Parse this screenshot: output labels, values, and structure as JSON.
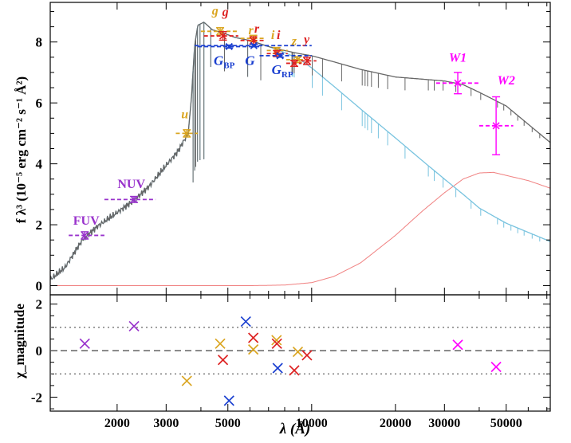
{
  "chart_data": {
    "type": "scatter",
    "x_scale": "log",
    "xlim": [
      1150,
      72000
    ],
    "xlabel": "λ (Å)",
    "xtick_labels": [
      "2000",
      "3000",
      "5000",
      "10000",
      "20000",
      "30000",
      "50000"
    ],
    "xtick_values": [
      2000,
      3000,
      5000,
      10000,
      20000,
      30000,
      50000
    ],
    "top_panel": {
      "ylabel": "f λ³ (10⁻⁵ erg cm⁻² s⁻¹ Å²)",
      "ylim": [
        -0.3,
        9.3
      ],
      "ytick_labels": [
        "0",
        "2",
        "4",
        "6",
        "8"
      ],
      "ytick_values": [
        0,
        2,
        4,
        6,
        8
      ],
      "colors": {
        "total_model": "#666666",
        "star_model": "#78c3df",
        "dust_blackbody": "#f08080",
        "galex": "#9933cc",
        "sdss": "#daa520",
        "panstarrs": "#dd2222",
        "gaia": "#1a3fd0",
        "wise": "#ff00ff"
      },
      "band_labels": [
        {
          "text": "FUV",
          "color": "#9933cc",
          "x": 1550,
          "y": 2.0
        },
        {
          "text": "NUV",
          "color": "#9933cc",
          "x": 2250,
          "y": 3.2
        },
        {
          "text": "u",
          "color": "#daa520",
          "x": 3500,
          "y": 5.5
        },
        {
          "text": "g",
          "color": "#daa520",
          "x": 4500,
          "y": 8.9
        },
        {
          "text": "g",
          "color": "#dd2222",
          "x": 4900,
          "y": 8.85
        },
        {
          "text": "r",
          "color": "#daa520",
          "x": 6050,
          "y": 8.25
        },
        {
          "text": "r",
          "color": "#dd2222",
          "x": 6350,
          "y": 8.3
        },
        {
          "text": "i",
          "color": "#daa520",
          "x": 7250,
          "y": 8.1
        },
        {
          "text": "i",
          "color": "#dd2222",
          "x": 7600,
          "y": 8.1
        },
        {
          "text": "z",
          "color": "#daa520",
          "x": 8650,
          "y": 7.9
        },
        {
          "text": "y",
          "color": "#dd2222",
          "x": 9600,
          "y": 7.95
        },
        {
          "text": "W1",
          "color": "#ff00ff",
          "x": 33500,
          "y": 7.35
        },
        {
          "text": "W2",
          "color": "#ff00ff",
          "x": 50000,
          "y": 6.6
        }
      ],
      "gaia_labels": [
        {
          "text": "G",
          "sub": "BP",
          "color": "#1a3fd0",
          "x": 4850,
          "y": 7.25
        },
        {
          "text": "G",
          "sub": "",
          "color": "#1a3fd0",
          "x": 6000,
          "y": 7.25
        },
        {
          "text": "G",
          "sub": "RP",
          "color": "#1a3fd0",
          "x": 7850,
          "y": 6.95
        }
      ],
      "points": [
        {
          "band": "FUV",
          "survey": "galex",
          "x": 1530,
          "y": 1.65,
          "xerr": [
            1340,
            1800
          ],
          "yerr": 0.12
        },
        {
          "band": "NUV",
          "survey": "galex",
          "x": 2300,
          "y": 2.83,
          "xerr": [
            1800,
            2750
          ],
          "yerr": 0.1
        },
        {
          "band": "u",
          "survey": "sdss",
          "x": 3560,
          "y": 5.0,
          "xerr": [
            3250,
            3900
          ],
          "yerr": 0.12
        },
        {
          "band": "g",
          "survey": "sdss",
          "x": 4690,
          "y": 8.35,
          "xerr": [
            4000,
            5400
          ],
          "yerr": 0.12
        },
        {
          "band": "g",
          "survey": "panstarrs",
          "x": 4800,
          "y": 8.2,
          "xerr": [
            4100,
            5450
          ],
          "yerr": 0.14
        },
        {
          "band": "r",
          "survey": "sdss",
          "x": 6170,
          "y": 8.12,
          "xerr": [
            5550,
            6850
          ],
          "yerr": 0.1
        },
        {
          "band": "r",
          "survey": "panstarrs",
          "x": 6170,
          "y": 8.05,
          "xerr": [
            5550,
            6850
          ],
          "yerr": 0.12
        },
        {
          "band": "i",
          "survey": "sdss",
          "x": 7480,
          "y": 7.72,
          "xerr": [
            6900,
            8200
          ],
          "yerr": 0.1
        },
        {
          "band": "i",
          "survey": "panstarrs",
          "x": 7500,
          "y": 7.62,
          "xerr": [
            6900,
            8200
          ],
          "yerr": 0.1
        },
        {
          "band": "z",
          "survey": "sdss",
          "x": 8920,
          "y": 7.42,
          "xerr": [
            8100,
            9800
          ],
          "yerr": 0.1
        },
        {
          "band": "z",
          "survey": "panstarrs",
          "x": 8660,
          "y": 7.3,
          "xerr": [
            8100,
            9200
          ],
          "yerr": 0.1
        },
        {
          "band": "y",
          "survey": "panstarrs",
          "x": 9620,
          "y": 7.38,
          "xerr": [
            9150,
            10400
          ],
          "yerr": 0.12
        },
        {
          "band": "G_BP",
          "survey": "gaia",
          "x": 5050,
          "y": 7.85,
          "xerr": [
            3900,
            6600
          ],
          "yerr": 0.05
        },
        {
          "band": "G",
          "survey": "gaia",
          "x": 6200,
          "y": 7.88,
          "xerr": [
            3800,
            10000
          ],
          "yerr": 0.04
        },
        {
          "band": "G_RP",
          "survey": "gaia",
          "x": 7700,
          "y": 7.55,
          "xerr": [
            6500,
            10000
          ],
          "yerr": 0.05
        },
        {
          "band": "W1",
          "survey": "wise",
          "x": 33500,
          "y": 6.65,
          "xerr": [
            28000,
            40000
          ],
          "yerr": 0.35
        },
        {
          "band": "W2",
          "survey": "wise",
          "x": 46000,
          "y": 5.25,
          "xerr": [
            40000,
            53000
          ],
          "yerr": 0.95
        }
      ]
    },
    "bottom_panel": {
      "ylabel": "χ_magnitude",
      "ylim": [
        -2.6,
        2.4
      ],
      "ytick_labels": [
        "2",
        "0",
        "-2"
      ],
      "ytick_values": [
        2,
        0,
        -2
      ],
      "ref_dashed": 0,
      "ref_dotted": [
        1,
        -1
      ],
      "points": [
        {
          "x": 1530,
          "y": 0.3,
          "color": "#9933cc"
        },
        {
          "x": 2300,
          "y": 1.05,
          "color": "#9933cc"
        },
        {
          "x": 3560,
          "y": -1.3,
          "color": "#daa520"
        },
        {
          "x": 4690,
          "y": 0.3,
          "color": "#daa520"
        },
        {
          "x": 4800,
          "y": -0.4,
          "color": "#dd2222"
        },
        {
          "x": 5050,
          "y": -2.15,
          "color": "#1a3fd0"
        },
        {
          "x": 5800,
          "y": 1.25,
          "color": "#1a3fd0"
        },
        {
          "x": 6170,
          "y": 0.55,
          "color": "#dd2222"
        },
        {
          "x": 6170,
          "y": 0.05,
          "color": "#daa520"
        },
        {
          "x": 7480,
          "y": 0.45,
          "color": "#daa520"
        },
        {
          "x": 7500,
          "y": 0.3,
          "color": "#dd2222"
        },
        {
          "x": 7550,
          "y": -0.75,
          "color": "#1a3fd0"
        },
        {
          "x": 8660,
          "y": -0.85,
          "color": "#dd2222"
        },
        {
          "x": 8920,
          "y": -0.05,
          "color": "#daa520"
        },
        {
          "x": 9620,
          "y": -0.2,
          "color": "#dd2222"
        },
        {
          "x": 33500,
          "y": 0.25,
          "color": "#ff00ff"
        },
        {
          "x": 46000,
          "y": -0.7,
          "color": "#ff00ff"
        }
      ]
    },
    "models": {
      "total_key": [
        [
          1150,
          0.2
        ],
        [
          1300,
          0.6
        ],
        [
          1500,
          1.5
        ],
        [
          1700,
          1.95
        ],
        [
          2000,
          2.4
        ],
        [
          2300,
          2.8
        ],
        [
          2600,
          3.25
        ],
        [
          3000,
          3.95
        ],
        [
          3300,
          4.4
        ],
        [
          3600,
          5.0
        ],
        [
          3700,
          6.2
        ],
        [
          3800,
          7.9
        ],
        [
          3900,
          8.55
        ],
        [
          4100,
          8.65
        ],
        [
          4400,
          8.4
        ],
        [
          4800,
          8.3
        ],
        [
          5300,
          8.15
        ],
        [
          6000,
          8.05
        ],
        [
          7000,
          7.85
        ],
        [
          8000,
          7.72
        ],
        [
          9000,
          7.62
        ],
        [
          10000,
          7.55
        ],
        [
          12000,
          7.35
        ],
        [
          15000,
          7.1
        ],
        [
          20000,
          6.85
        ],
        [
          25000,
          6.78
        ],
        [
          30000,
          6.72
        ],
        [
          35000,
          6.6
        ],
        [
          40000,
          6.35
        ],
        [
          50000,
          5.9
        ],
        [
          60000,
          5.3
        ],
        [
          72000,
          4.7
        ]
      ],
      "star_key": [
        [
          1150,
          0.2
        ],
        [
          1300,
          0.6
        ],
        [
          1500,
          1.5
        ],
        [
          1700,
          1.95
        ],
        [
          2000,
          2.4
        ],
        [
          2300,
          2.8
        ],
        [
          2600,
          3.25
        ],
        [
          3000,
          3.95
        ],
        [
          3300,
          4.4
        ],
        [
          3600,
          5.0
        ],
        [
          3700,
          6.2
        ],
        [
          3800,
          7.9
        ],
        [
          3900,
          8.55
        ],
        [
          4100,
          8.65
        ],
        [
          4400,
          8.4
        ],
        [
          4800,
          8.3
        ],
        [
          5300,
          8.15
        ],
        [
          6000,
          8.05
        ],
        [
          7000,
          7.85
        ],
        [
          8000,
          7.65
        ],
        [
          9000,
          7.45
        ],
        [
          10000,
          7.15
        ],
        [
          12000,
          6.55
        ],
        [
          15000,
          5.8
        ],
        [
          20000,
          4.85
        ],
        [
          25000,
          4.1
        ],
        [
          30000,
          3.5
        ],
        [
          35000,
          3.0
        ],
        [
          40000,
          2.55
        ],
        [
          50000,
          2.05
        ],
        [
          60000,
          1.75
        ],
        [
          72000,
          1.45
        ]
      ],
      "dust_key": [
        [
          1300,
          0.0
        ],
        [
          6000,
          0.0
        ],
        [
          8000,
          0.02
        ],
        [
          10000,
          0.1
        ],
        [
          12000,
          0.3
        ],
        [
          15000,
          0.75
        ],
        [
          20000,
          1.65
        ],
        [
          25000,
          2.45
        ],
        [
          30000,
          3.05
        ],
        [
          35000,
          3.5
        ],
        [
          40000,
          3.7
        ],
        [
          45000,
          3.72
        ],
        [
          50000,
          3.62
        ],
        [
          60000,
          3.45
        ],
        [
          72000,
          3.2
        ]
      ],
      "absorption_lines": [
        3750,
        3798,
        3835,
        3889,
        3970,
        4102,
        4341,
        4861,
        5892,
        6563,
        8498,
        8542,
        8662,
        10049,
        10938,
        12818,
        15192,
        15556,
        15885,
        16407,
        17362,
        18751,
        21655,
        26252,
        27575,
        29656,
        32970,
        37395,
        40512,
        46525,
        49000,
        52000,
        55000,
        58000,
        62000,
        66000
      ]
    }
  }
}
